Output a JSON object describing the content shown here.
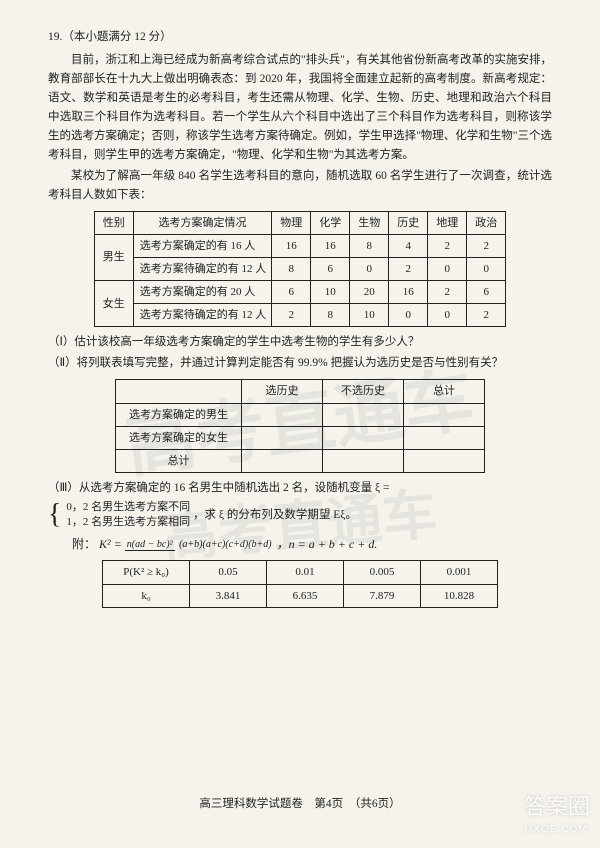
{
  "question": {
    "number": "19.",
    "points": "（本小题满分 12 分）",
    "para1": "目前，浙江和上海已经成为新高考综合试点的\"排头兵\"，有关其他省份新高考改革的实施安排，教育部部长在十九大上做出明确表态：到 2020 年，我国将全面建立起新的高考制度。新高考规定：语文、数学和英语是考生的必考科目，考生还需从物理、化学、生物、历史、地理和政治六个科目中选取三个科目作为选考科目。若一个学生从六个科目中选出了三个科目作为选考科目，则称该学生的选考方案确定；否则，称该学生选考方案待确定。例如，学生甲选择\"物理、化学和生物\"三个选考科目，则学生甲的选考方案确定，\"物理、化学和生物\"为其选考方案。",
    "para2": "某校为了解高一年级 840 名学生选考科目的意向，随机选取 60 名学生进行了一次调查，统计选考科目人数如下表："
  },
  "table1": {
    "headers": [
      "性别",
      "选考方案确定情况",
      "物理",
      "化学",
      "生物",
      "历史",
      "地理",
      "政治"
    ],
    "rows": [
      {
        "gender": "男生",
        "label": "选考方案确定的有 16 人",
        "v": [
          "16",
          "16",
          "8",
          "4",
          "2",
          "2"
        ]
      },
      {
        "gender": "",
        "label": "选考方案待确定的有 12 人",
        "v": [
          "8",
          "6",
          "0",
          "2",
          "0",
          "0"
        ]
      },
      {
        "gender": "女生",
        "label": "选考方案确定的有 20 人",
        "v": [
          "6",
          "10",
          "20",
          "16",
          "2",
          "6"
        ]
      },
      {
        "gender": "",
        "label": "选考方案待确定的有 12 人",
        "v": [
          "2",
          "8",
          "10",
          "0",
          "0",
          "2"
        ]
      }
    ]
  },
  "sub1": "（Ⅰ）估计该校高一年级选考方案确定的学生中选考生物的学生有多少人？",
  "sub2": "（Ⅱ）将列联表填写完整，并通过计算判定能否有 99.9% 把握认为选历史是否与性别有关？",
  "table2": {
    "headers": [
      "",
      "选历史",
      "不选历史",
      "总计"
    ],
    "rows": [
      "选考方案确定的男生",
      "选考方案确定的女生",
      "总计"
    ]
  },
  "sub3": {
    "lead": "（Ⅲ）从选考方案确定的 16 名男生中随机选出 2 名，设随机变量 ξ =",
    "opt0": "0，2 名男生选考方案不同",
    "opt1": "1，2 名男生选考方案相同",
    "tail": "，求 ξ 的分布列及数学期望 Eξ。"
  },
  "formula_label": "附：",
  "formula_k2": "K²",
  "formula_num": "n(ad − bc)²",
  "formula_den": "(a+b)(a+c)(c+d)(b+d)",
  "formula_tail": "，n = a + b + c + d.",
  "table3": {
    "row1": [
      "P(K² ≥ k₀)",
      "0.05",
      "0.01",
      "0.005",
      "0.001"
    ],
    "row2": [
      "k₀",
      "3.841",
      "6.635",
      "7.879",
      "10.828"
    ]
  },
  "footer": "高三理科数学试题卷　第4页　（共6页）",
  "watermark": "高考直通车",
  "corner": {
    "main": "答案圈",
    "sub": "MXQE.COM"
  }
}
